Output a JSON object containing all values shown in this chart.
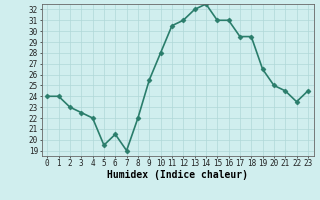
{
  "x": [
    0,
    1,
    2,
    3,
    4,
    5,
    6,
    7,
    8,
    9,
    10,
    11,
    12,
    13,
    14,
    15,
    16,
    17,
    18,
    19,
    20,
    21,
    22,
    23
  ],
  "y": [
    24.0,
    24.0,
    23.0,
    22.5,
    22.0,
    19.5,
    20.5,
    19.0,
    22.0,
    25.5,
    28.0,
    30.5,
    31.0,
    32.0,
    32.5,
    31.0,
    31.0,
    29.5,
    29.5,
    26.5,
    25.0,
    24.5,
    23.5,
    24.5
  ],
  "line_color": "#2a7d6b",
  "marker_color": "#2a7d6b",
  "bg_color": "#d0eeee",
  "grid_color": "#b0d8d8",
  "xlabel": "Humidex (Indice chaleur)",
  "ylim": [
    18.5,
    32.5
  ],
  "xlim": [
    -0.5,
    23.5
  ],
  "yticks": [
    19,
    20,
    21,
    22,
    23,
    24,
    25,
    26,
    27,
    28,
    29,
    30,
    31,
    32
  ],
  "xticks": [
    0,
    1,
    2,
    3,
    4,
    5,
    6,
    7,
    8,
    9,
    10,
    11,
    12,
    13,
    14,
    15,
    16,
    17,
    18,
    19,
    20,
    21,
    22,
    23
  ],
  "xtick_labels": [
    "0",
    "1",
    "2",
    "3",
    "4",
    "5",
    "6",
    "7",
    "8",
    "9",
    "10",
    "11",
    "12",
    "13",
    "14",
    "15",
    "16",
    "17",
    "18",
    "19",
    "20",
    "21",
    "22",
    "23"
  ],
  "tick_font_size": 5.5,
  "xlabel_font_size": 7,
  "line_width": 1.2,
  "marker_size": 2.5
}
